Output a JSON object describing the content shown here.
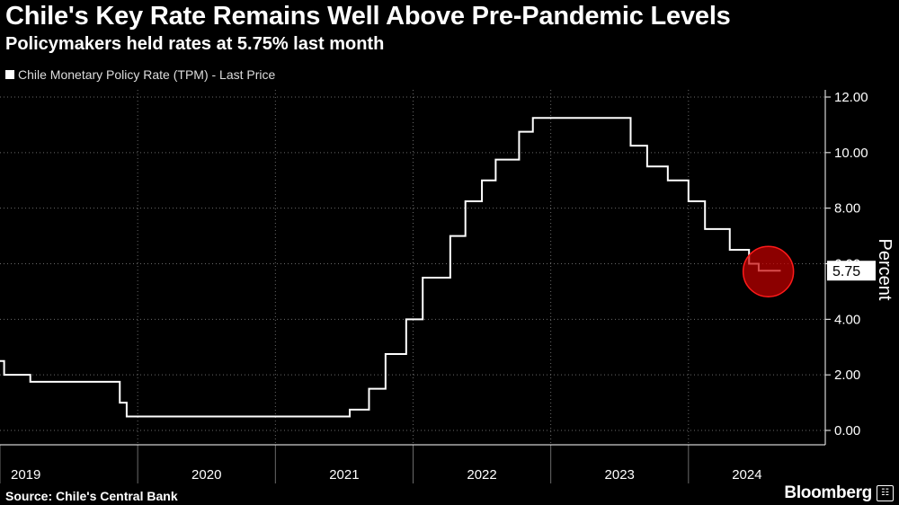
{
  "header": {
    "title": "Chile's Key Rate Remains Well Above Pre-Pandemic Levels",
    "subtitle": "Policymakers held rates at 5.75% last month"
  },
  "legend": {
    "label": "Chile Monetary Policy Rate (TPM) - Last Price"
  },
  "footer": {
    "source": "Source: Chile's Central Bank",
    "brand": "Bloomberg",
    "brand_icon": "bloomberg-terminal-icon"
  },
  "colors": {
    "background": "#000000",
    "line": "#ffffff",
    "grid": "#666666",
    "highlight": "#d00000"
  },
  "chart_data": {
    "type": "line",
    "title": "Chile's Key Rate Remains Well Above Pre-Pandemic Levels",
    "series": [
      {
        "name": "Chile Monetary Policy Rate (TPM) - Last Price",
        "step": true,
        "points": [
          [
            2019.0,
            2.5
          ],
          [
            2019.03,
            2.0
          ],
          [
            2019.22,
            1.75
          ],
          [
            2019.87,
            1.0
          ],
          [
            2019.92,
            0.5
          ],
          [
            2021.54,
            0.75
          ],
          [
            2021.68,
            1.5
          ],
          [
            2021.8,
            2.75
          ],
          [
            2021.95,
            4.0
          ],
          [
            2022.07,
            5.5
          ],
          [
            2022.27,
            7.0
          ],
          [
            2022.38,
            8.25
          ],
          [
            2022.5,
            9.0
          ],
          [
            2022.6,
            9.75
          ],
          [
            2022.77,
            10.75
          ],
          [
            2022.87,
            11.25
          ],
          [
            2023.58,
            10.25
          ],
          [
            2023.7,
            9.5
          ],
          [
            2023.85,
            9.0
          ],
          [
            2024.0,
            8.25
          ],
          [
            2024.12,
            7.25
          ],
          [
            2024.3,
            6.5
          ],
          [
            2024.44,
            6.0
          ],
          [
            2024.51,
            5.75
          ],
          [
            2024.67,
            5.75
          ]
        ]
      }
    ],
    "x_ticks": [
      "2019",
      "2020",
      "2021",
      "2022",
      "2023",
      "2024"
    ],
    "y_ticks": [
      "0.00",
      "2.00",
      "4.00",
      "6.00",
      "8.00",
      "10.00",
      "12.00"
    ],
    "ylim": [
      0,
      12
    ],
    "xlim": [
      2019.0,
      2024.85
    ],
    "ylabel": "Percent",
    "xlabel": "",
    "last_value_label": "5.75",
    "grid": true,
    "legend_position": "top-left"
  }
}
